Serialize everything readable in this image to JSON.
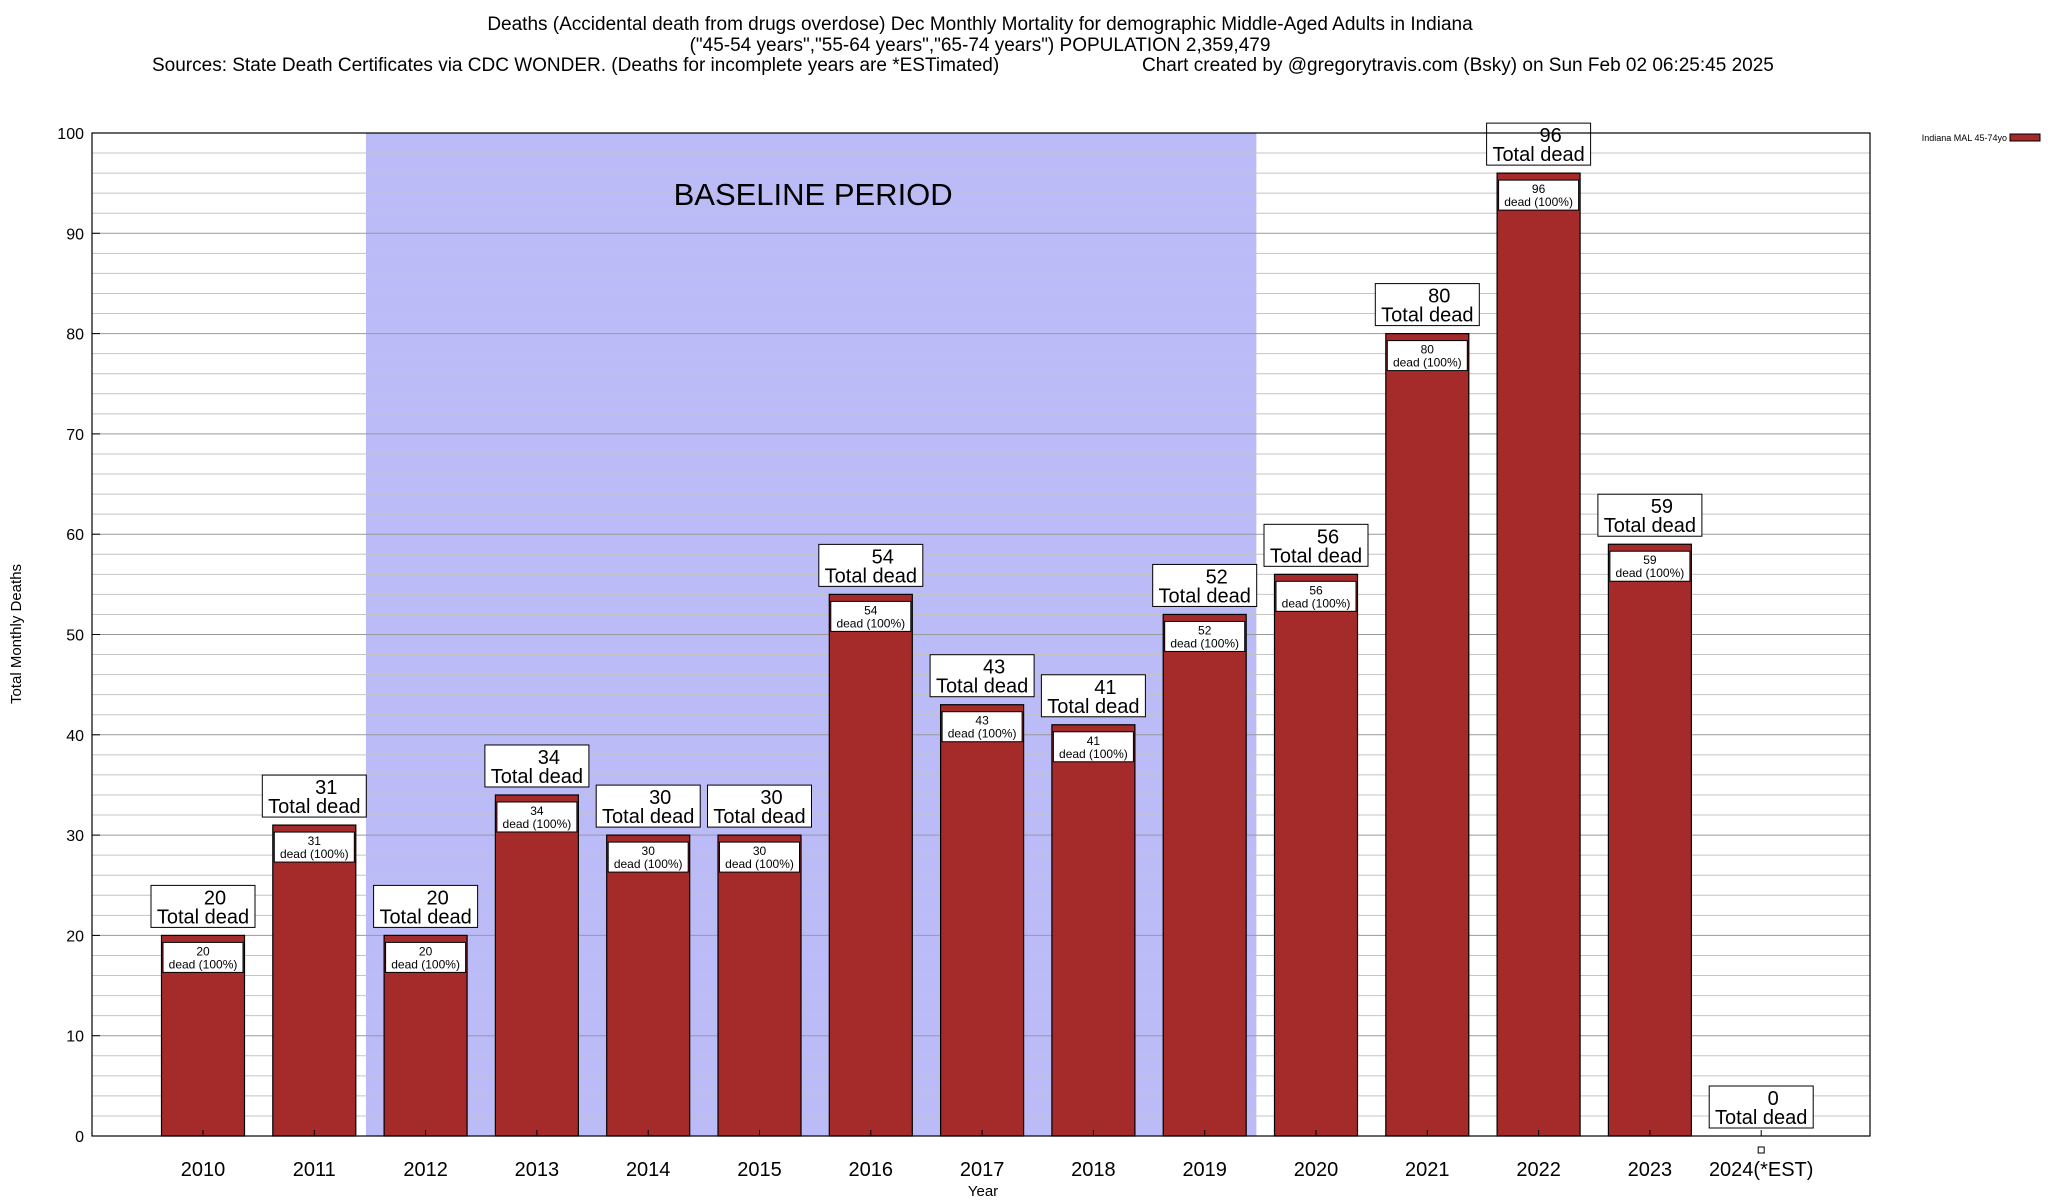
{
  "header": {
    "title_line1": "Deaths (Accidental death from drugs overdose) Dec Monthly Mortality for demographic Middle-Aged Adults in Indiana",
    "title_line2": "(\"45-54 years\",\"55-64 years\",\"65-74 years\") POPULATION 2,359,479",
    "sources": "Sources: State Death Certificates via CDC WONDER. (Deaths for incomplete years are *ESTimated)",
    "credit": "Chart created by @gregorytravis.com (Bsky) on Sun Feb 02 06:25:45 2025"
  },
  "chart_data": {
    "type": "bar",
    "title": "Deaths (Accidental death from drugs overdose) Dec Monthly Mortality for demographic Middle-Aged Adults in Indiana",
    "xlabel": "Year",
    "ylabel": "Total Monthly Deaths",
    "ylim": [
      0,
      100
    ],
    "yticks": [
      0,
      10,
      20,
      30,
      40,
      50,
      60,
      70,
      80,
      90,
      100
    ],
    "grid": true,
    "legend_position": "top-right",
    "categories": [
      "2010",
      "2011",
      "2012",
      "2013",
      "2014",
      "2015",
      "2016",
      "2017",
      "2018",
      "2019",
      "2020",
      "2021",
      "2022",
      "2023",
      "2024(*EST)"
    ],
    "series": [
      {
        "name": "Indiana MAL 45-74yo",
        "color": "#a52a2a",
        "values": [
          20,
          31,
          20,
          34,
          30,
          30,
          54,
          43,
          41,
          52,
          56,
          80,
          96,
          59,
          0
        ]
      }
    ],
    "total_label_text": "Total dead",
    "inner_label_text": "dead (100%)",
    "baseline_period": {
      "label": "BASELINE PERIOD",
      "start_category": "2012",
      "end_category": "2019",
      "color": "#bbbbf8"
    }
  }
}
